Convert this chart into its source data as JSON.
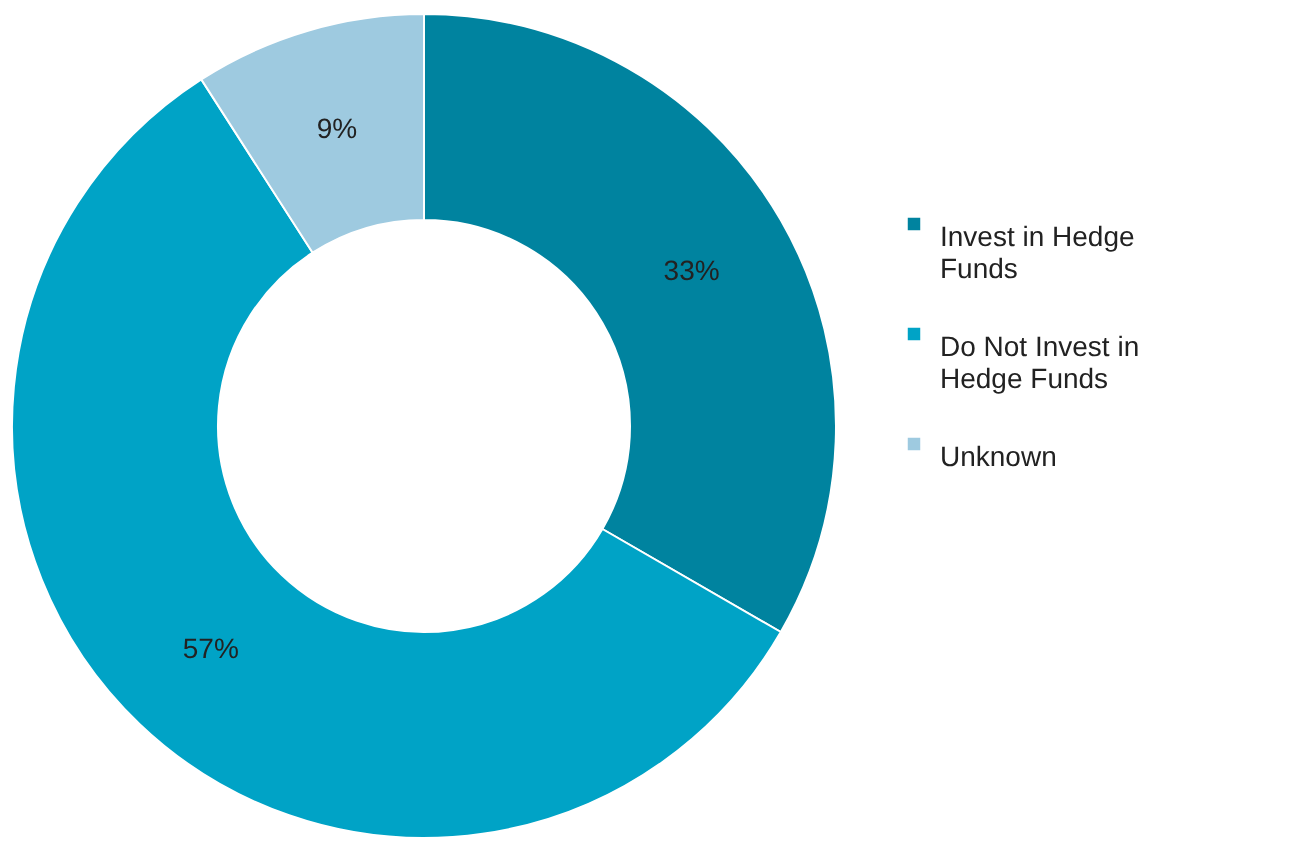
{
  "chart_data": {
    "type": "donut",
    "categories": [
      "Invest in Hedge Funds",
      "Do Not Invest in Hedge Funds",
      "Unknown"
    ],
    "values": [
      33,
      57,
      9
    ],
    "value_labels": [
      "33%",
      "57%",
      "9%"
    ],
    "colors": [
      "#00839f",
      "#00a3c6",
      "#9ecae0"
    ],
    "legend": "right"
  }
}
